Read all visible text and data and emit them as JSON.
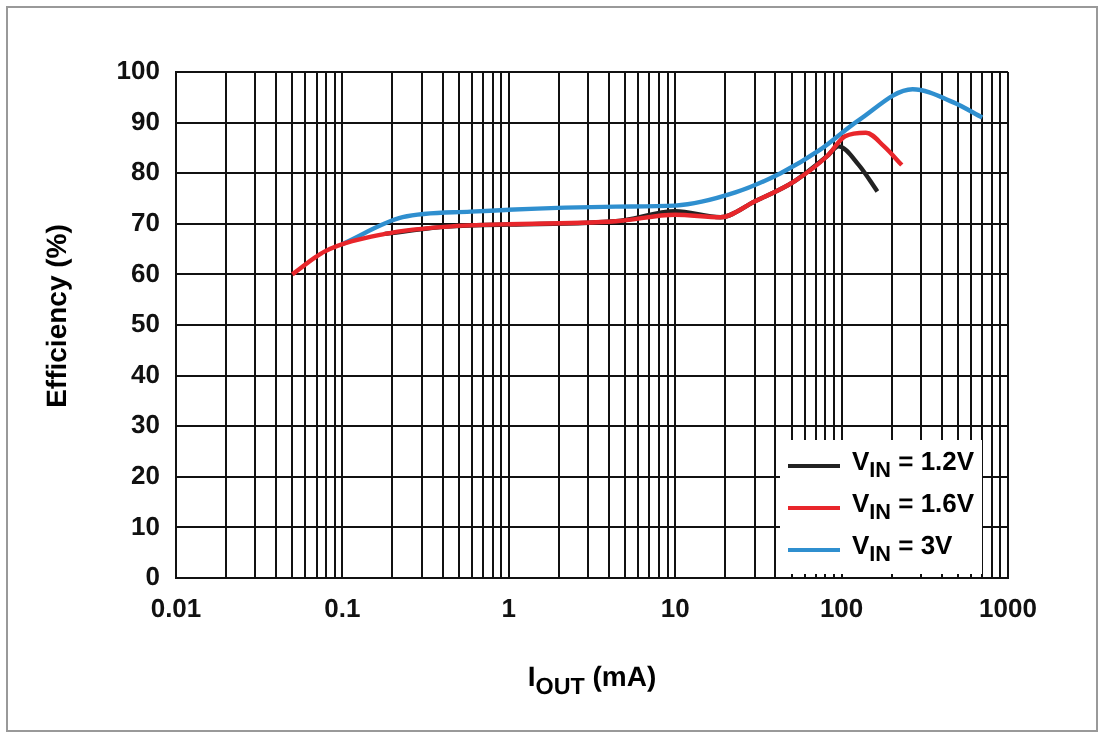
{
  "chart_data": {
    "type": "line",
    "xlabel": "I$_{OUT}$ (mA)",
    "ylabel": "Efficiency (%)",
    "log": "x",
    "xlim": [
      0.01,
      1000
    ],
    "ylim": [
      0,
      100
    ],
    "xticks": [
      0.01,
      {
        "value": 0.02,
        "label": null
      },
      {
        "value": 0.03,
        "label": null
      },
      {
        "value": 0.04,
        "label": null
      },
      {
        "value": 0.05,
        "label": null
      },
      {
        "value": 0.06,
        "label": null
      },
      {
        "value": 0.07,
        "label": null
      },
      {
        "value": 0.08,
        "label": null
      },
      {
        "value": 0.09,
        "label": null
      },
      0.1,
      {
        "value": 0.2,
        "label": null
      },
      {
        "value": 0.3,
        "label": null
      },
      {
        "value": 0.4,
        "label": null
      },
      {
        "value": 0.5,
        "label": null
      },
      {
        "value": 0.6,
        "label": null
      },
      {
        "value": 0.7,
        "label": null
      },
      {
        "value": 0.8,
        "label": null
      },
      {
        "value": 0.9,
        "label": null
      },
      1,
      {
        "value": 2,
        "label": null
      },
      {
        "value": 3,
        "label": null
      },
      {
        "value": 4,
        "label": null
      },
      {
        "value": 5,
        "label": null
      },
      {
        "value": 6,
        "label": null
      },
      {
        "value": 7,
        "label": null
      },
      {
        "value": 8,
        "label": null
      },
      {
        "value": 9,
        "label": null
      },
      10,
      {
        "value": 20,
        "label": null
      },
      {
        "value": 30,
        "label": null
      },
      {
        "value": 40,
        "label": null
      },
      {
        "value": 50,
        "label": null
      },
      {
        "value": 60,
        "label": null
      },
      {
        "value": 70,
        "label": null
      },
      {
        "value": 80,
        "label": null
      },
      {
        "value": 90,
        "label": null
      },
      100,
      {
        "value": 200,
        "label": null
      },
      {
        "value": 300,
        "label": null
      },
      {
        "value": 400,
        "label": null
      },
      {
        "value": 500,
        "label": null
      },
      {
        "value": 600,
        "label": null
      },
      {
        "value": 700,
        "label": null
      },
      {
        "value": 800,
        "label": null
      },
      {
        "value": 900,
        "label": null
      },
      1000
    ],
    "yticks": [
      0,
      10,
      20,
      30,
      40,
      50,
      60,
      70,
      80,
      90,
      100
    ],
    "grid": true,
    "legend": "bottom right",
    "marker": "none",
    "line_style": "solid",
    "series": [
      {
        "name": "V$_{IN}$ = 1.2V",
        "color": "#222222",
        "x": [
          0.18,
          0.45,
          4.4,
          10,
          18.7,
          30,
          52,
          82,
          96,
          127,
          164
        ],
        "values": [
          68,
          69.5,
          70.5,
          72.5,
          71.3,
          74.4,
          78.4,
          83.4,
          85.3,
          81.6,
          76.4
        ]
      },
      {
        "name": "V$_{IN}$ = 1.6V",
        "color": "#e8262b",
        "x": [
          0.05,
          0.078,
          0.18,
          0.45,
          4.4,
          10,
          18.7,
          30,
          52,
          82,
          105,
          140,
          180,
          230
        ],
        "values": [
          60,
          64.5,
          68,
          69.5,
          70.5,
          71.8,
          71.3,
          74.4,
          78.4,
          83.4,
          87.3,
          88,
          85.3,
          81.6
        ]
      },
      {
        "name": "V$_{IN}$ = 3V",
        "color": "#2f8fcf",
        "x": [
          0.1,
          0.23,
          0.59,
          4.4,
          10,
          23,
          43,
          74,
          127,
          267,
          470,
          700
        ],
        "values": [
          66,
          71.3,
          72.4,
          73.4,
          73.6,
          76.2,
          80,
          84.6,
          90.5,
          96.6,
          94,
          91
        ]
      }
    ]
  }
}
